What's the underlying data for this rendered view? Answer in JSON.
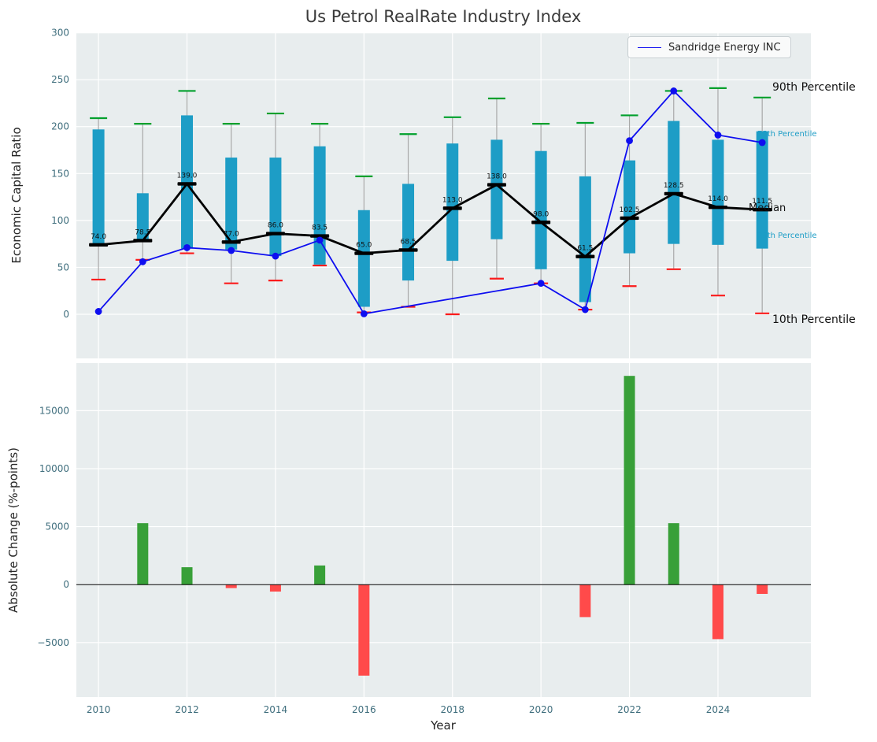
{
  "title": "Us Petrol RealRate Industry Index",
  "colors": {
    "plot_bg": "#e8edee",
    "grid": "#ffffff",
    "box": "#1d9dc6",
    "whisker": "#a8a8a8",
    "cap_high": "#00a02c",
    "cap_low": "#fb1b1b",
    "median": "#000000",
    "company": "#0e0ef0",
    "bar_pos": "#38a038",
    "bar_neg": "#ff4a4a",
    "zero_line": "#000000",
    "tick_text": "#3f6e7d",
    "label_text": "#262626",
    "annotation_teal": "#1d9dc6"
  },
  "chart_data": [
    {
      "type": "boxplot",
      "title": "Us Petrol RealRate Industry Index",
      "ylabel": "Economic Capital Ratio",
      "ylim": [
        -47,
        300
      ],
      "yticks": [
        0,
        50,
        100,
        150,
        200,
        250,
        300
      ],
      "xticks": [
        2010,
        2012,
        2014,
        2016,
        2018,
        2020,
        2022,
        2024
      ],
      "grid": true,
      "legend_position": "upper right",
      "years": [
        2010,
        2011,
        2012,
        2013,
        2014,
        2015,
        2016,
        2017,
        2018,
        2019,
        2020,
        2021,
        2022,
        2023,
        2024,
        2025
      ],
      "series": {
        "p90": [
          209,
          203,
          238,
          203,
          214,
          203,
          147,
          192,
          210,
          230,
          203,
          204,
          212,
          238,
          241,
          231
        ],
        "p75": [
          197,
          129,
          212,
          167,
          167,
          179,
          111,
          139,
          182,
          186,
          174,
          147,
          164,
          206,
          186,
          195
        ],
        "median": [
          74.0,
          78.5,
          139.0,
          77.0,
          86.0,
          83.5,
          65.0,
          68.5,
          113.0,
          138.0,
          98.0,
          61.5,
          102.5,
          128.5,
          114.0,
          111.5
        ],
        "p25": [
          73,
          78,
          70,
          69,
          62,
          53,
          8,
          36,
          57,
          80,
          48,
          13,
          65,
          75,
          74,
          70
        ],
        "p10": [
          37,
          58,
          65,
          33,
          36,
          52,
          2,
          8,
          0,
          38,
          33,
          5,
          30,
          48,
          20,
          1
        ]
      },
      "company": {
        "name": "Sandridge Energy INC",
        "values": [
          3,
          56,
          71,
          68,
          62,
          79,
          0.5,
          null,
          null,
          null,
          33,
          5,
          185,
          238,
          191,
          183
        ]
      },
      "annotations": {
        "p90": "90th Percentile",
        "p75": "75th Percentile",
        "median": "Median",
        "p25": "25th Percentile",
        "p10": "10th Percentile"
      }
    },
    {
      "type": "bar",
      "ylabel": "Absolute Change (%-points)",
      "xlabel": "Year",
      "ylim": [
        -9700,
        19100
      ],
      "yticks": [
        -5000,
        0,
        5000,
        10000,
        15000
      ],
      "xticks": [
        2010,
        2012,
        2014,
        2016,
        2018,
        2020,
        2022,
        2024
      ],
      "grid": true,
      "years": [
        2010,
        2011,
        2012,
        2013,
        2014,
        2015,
        2016,
        2017,
        2018,
        2019,
        2020,
        2021,
        2022,
        2023,
        2024,
        2025
      ],
      "values": [
        null,
        5300,
        1500,
        -300,
        -600,
        1650,
        -7850,
        null,
        null,
        null,
        null,
        -2800,
        18000,
        5300,
        -4700,
        -800
      ]
    }
  ]
}
